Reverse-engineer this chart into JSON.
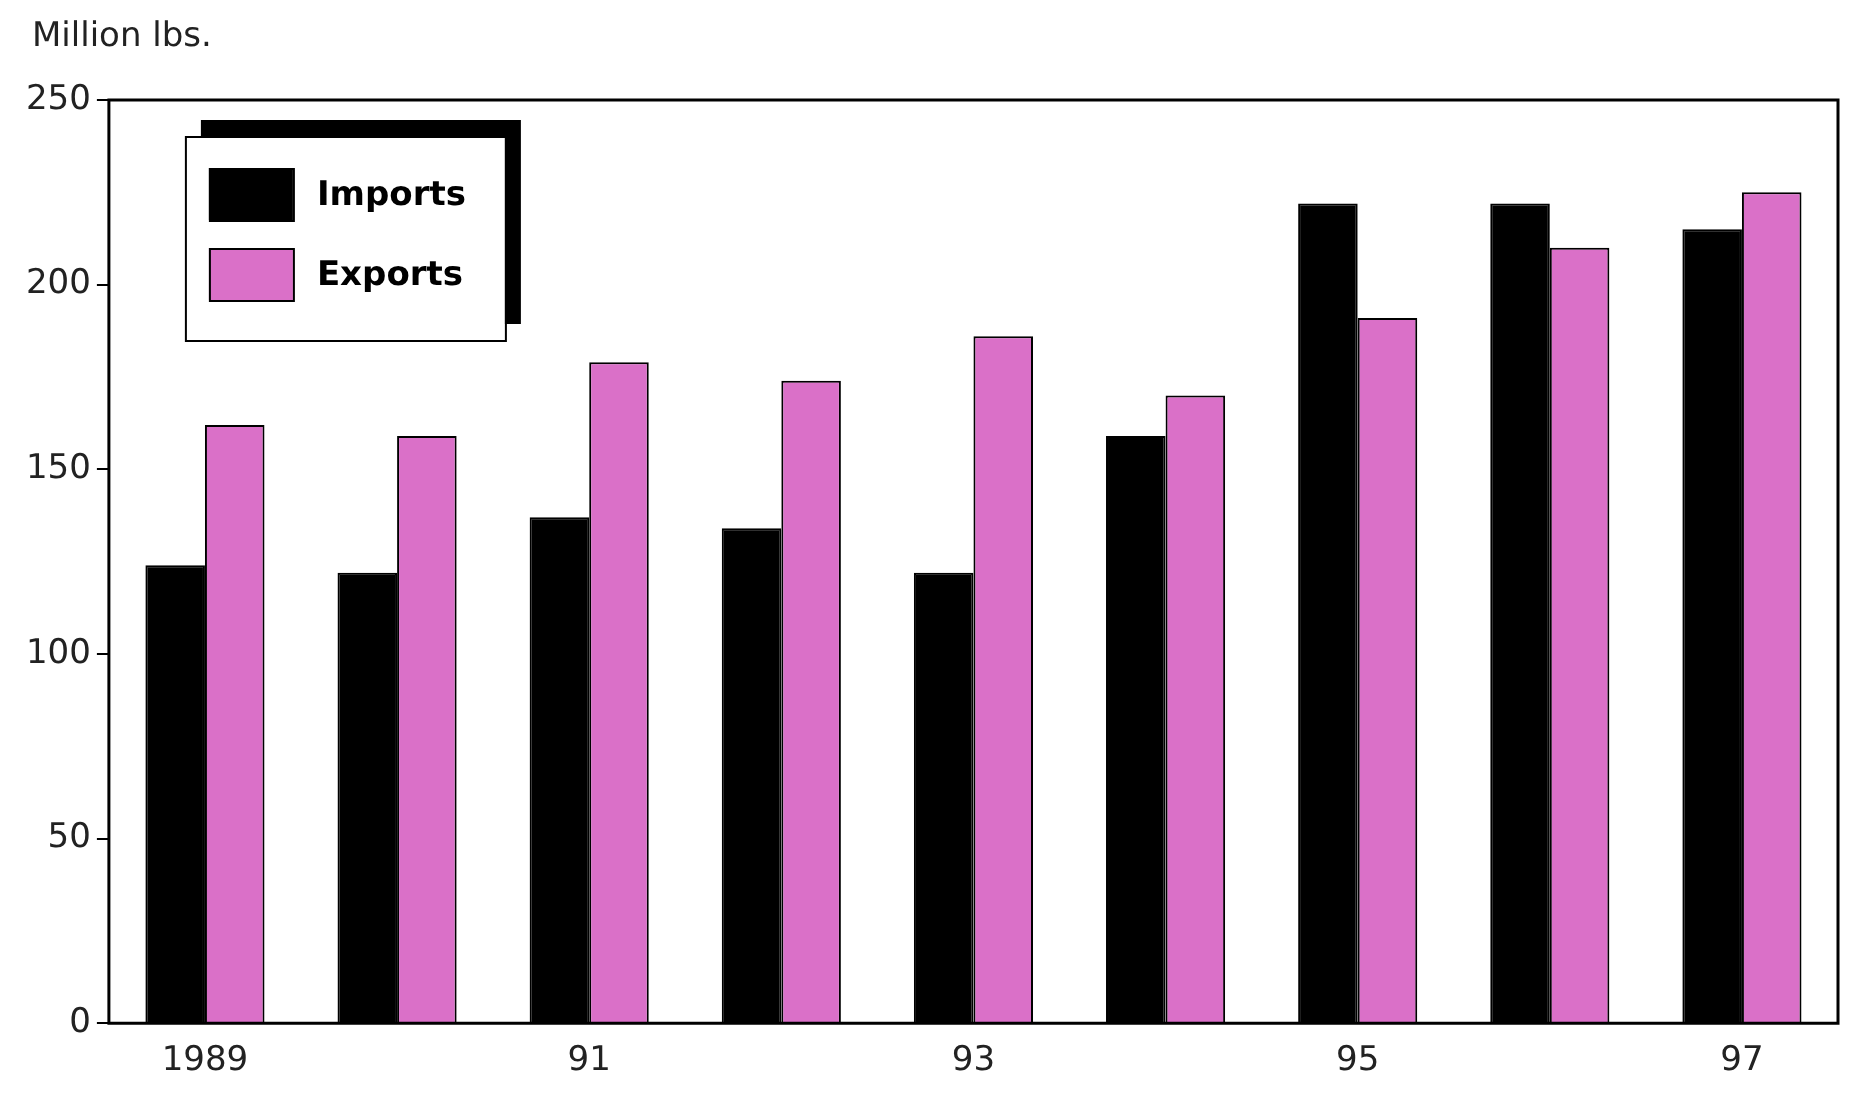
{
  "chart_data": {
    "type": "bar",
    "ylabel": "Million lbs.",
    "categories": [
      "1989",
      null,
      "91",
      null,
      "93",
      null,
      "95",
      null,
      "97"
    ],
    "series": [
      {
        "name": "Imports",
        "color": "#000000",
        "values": [
          124,
          122,
          137,
          134,
          122,
          159,
          222,
          222,
          215
        ]
      },
      {
        "name": "Exports",
        "color": "#da70c8",
        "values": [
          162,
          159,
          179,
          174,
          186,
          170,
          191,
          210,
          225
        ]
      }
    ],
    "ylim": [
      0,
      250
    ],
    "yticks": [
      0,
      50,
      100,
      150,
      200,
      250
    ],
    "grid": false,
    "legend": "top left"
  }
}
